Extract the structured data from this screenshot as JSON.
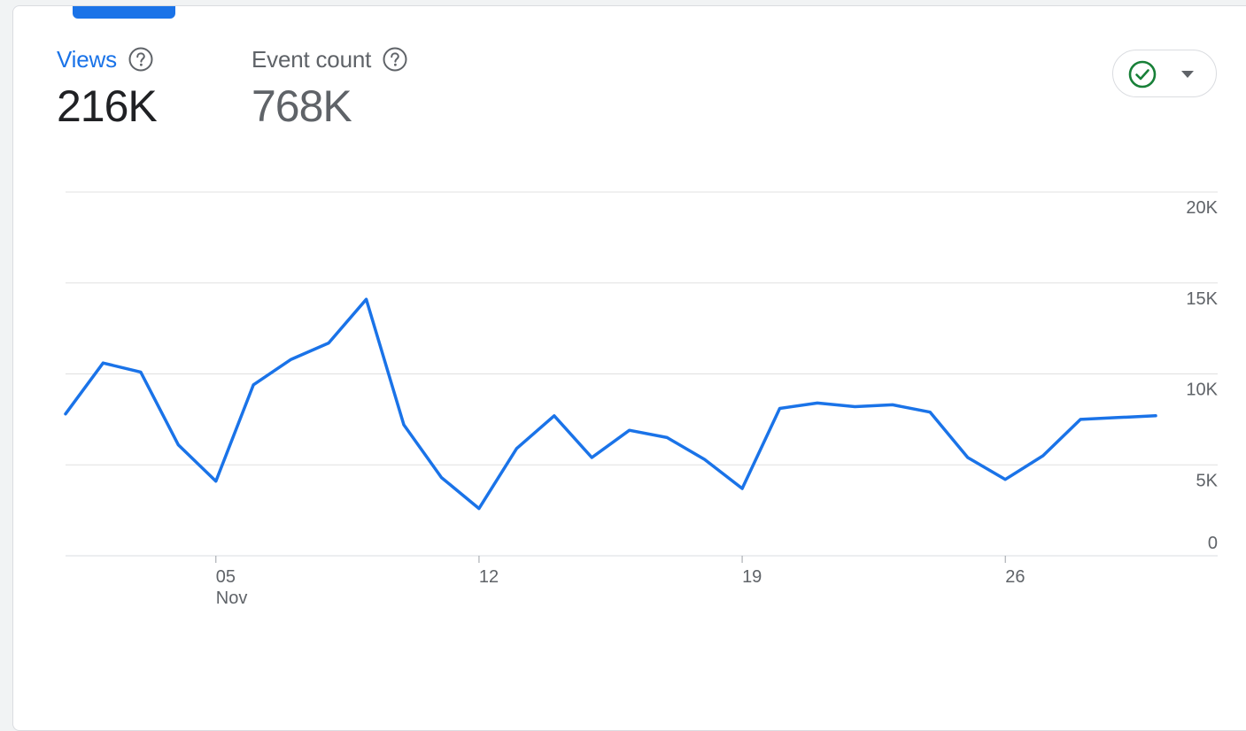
{
  "metrics": {
    "views": {
      "label": "Views",
      "value": "216K",
      "help_icon": "help-circle-icon"
    },
    "event_count": {
      "label": "Event count",
      "value": "768K",
      "help_icon": "help-circle-icon"
    }
  },
  "status_control": {
    "icon": "check-circle-icon",
    "dropdown_icon": "caret-down-icon",
    "icon_color": "#188038"
  },
  "colors": {
    "accent": "#1a73e8",
    "line": "#1a73e8",
    "grid": "#e0e0e0"
  },
  "chart_data": {
    "type": "line",
    "x": [
      "2023-11-01",
      "2023-11-02",
      "2023-11-03",
      "2023-11-04",
      "2023-11-05",
      "2023-11-06",
      "2023-11-07",
      "2023-11-08",
      "2023-11-09",
      "2023-11-10",
      "2023-11-11",
      "2023-11-12",
      "2023-11-13",
      "2023-11-14",
      "2023-11-15",
      "2023-11-16",
      "2023-11-17",
      "2023-11-18",
      "2023-11-19",
      "2023-11-20",
      "2023-11-21",
      "2023-11-22",
      "2023-11-23",
      "2023-11-24",
      "2023-11-25",
      "2023-11-26",
      "2023-11-27",
      "2023-11-28",
      "2023-11-29",
      "2023-11-30"
    ],
    "series": [
      {
        "values": [
          7800,
          10600,
          10100,
          6100,
          4100,
          9400,
          10800,
          11700,
          14100,
          7200,
          4300,
          2600,
          5900,
          7700,
          5400,
          6900,
          6500,
          5300,
          3700,
          8100,
          8400,
          8200,
          8300,
          7900,
          5400,
          4200,
          5500,
          7500,
          7600,
          7700
        ]
      }
    ],
    "x_tick_labels": [
      {
        "x": "2023-11-05",
        "label": "05",
        "sublabel": "Nov"
      },
      {
        "x": "2023-11-12",
        "label": "12"
      },
      {
        "x": "2023-11-19",
        "label": "19"
      },
      {
        "x": "2023-11-26",
        "label": "26"
      }
    ],
    "y_ticks": [
      0,
      5000,
      10000,
      15000,
      20000
    ],
    "y_tick_labels": [
      "0",
      "5K",
      "10K",
      "15K",
      "20K"
    ],
    "ylim": [
      0,
      20000
    ],
    "grid": true,
    "y_axis_position": "right"
  }
}
